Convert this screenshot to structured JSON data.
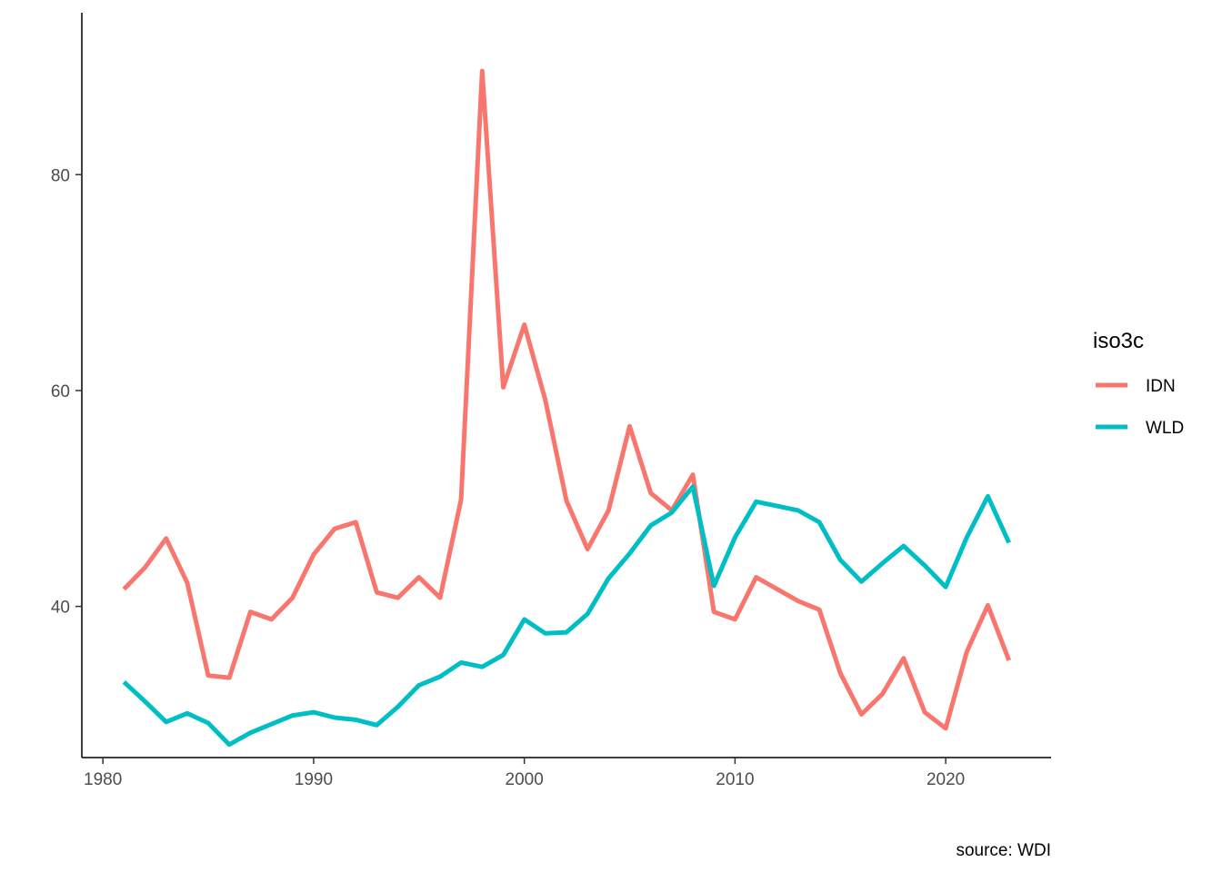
{
  "chart_data": {
    "type": "line",
    "x": [
      1981,
      1982,
      1983,
      1984,
      1985,
      1986,
      1987,
      1988,
      1989,
      1990,
      1991,
      1992,
      1993,
      1994,
      1995,
      1996,
      1997,
      1998,
      1999,
      2000,
      2001,
      2002,
      2003,
      2004,
      2005,
      2006,
      2007,
      2008,
      2009,
      2010,
      2011,
      2012,
      2013,
      2014,
      2015,
      2016,
      2017,
      2018,
      2019,
      2020,
      2021,
      2022,
      2023
    ],
    "series": [
      {
        "name": "IDN",
        "color": "#F8766D",
        "values": [
          41.6,
          43.6,
          46.3,
          42.2,
          33.6,
          33.4,
          39.5,
          38.8,
          40.8,
          44.8,
          47.2,
          47.8,
          41.3,
          40.8,
          42.7,
          40.8,
          49.9,
          89.6,
          60.3,
          66.1,
          59.1,
          49.8,
          45.3,
          48.9,
          56.7,
          50.5,
          48.9,
          52.2,
          39.5,
          38.8,
          42.7,
          41.6,
          40.5,
          39.7,
          33.8,
          30.0,
          31.9,
          35.2,
          30.2,
          28.7,
          35.8,
          40.1,
          35.0
        ]
      },
      {
        "name": "WLD",
        "color": "#00BFC4",
        "values": [
          33.0,
          31.2,
          29.3,
          30.1,
          29.2,
          27.2,
          28.3,
          29.1,
          29.9,
          30.2,
          29.7,
          29.5,
          29.0,
          30.7,
          32.7,
          33.5,
          34.8,
          34.4,
          35.5,
          38.8,
          37.5,
          37.6,
          39.3,
          42.6,
          44.9,
          47.5,
          48.7,
          51.1,
          41.9,
          46.4,
          49.7,
          49.3,
          48.9,
          47.8,
          44.3,
          42.3,
          44.0,
          45.6,
          43.8,
          41.8,
          46.4,
          50.2,
          45.9
        ]
      }
    ],
    "x_ticks": [
      1980,
      1990,
      2000,
      2010,
      2020
    ],
    "y_ticks": [
      40,
      60,
      80
    ],
    "xlim": [
      1979,
      2025
    ],
    "ylim": [
      26,
      95
    ],
    "legend_title": "iso3c",
    "legend_position": "right",
    "caption": "source: WDI",
    "grid": false
  }
}
